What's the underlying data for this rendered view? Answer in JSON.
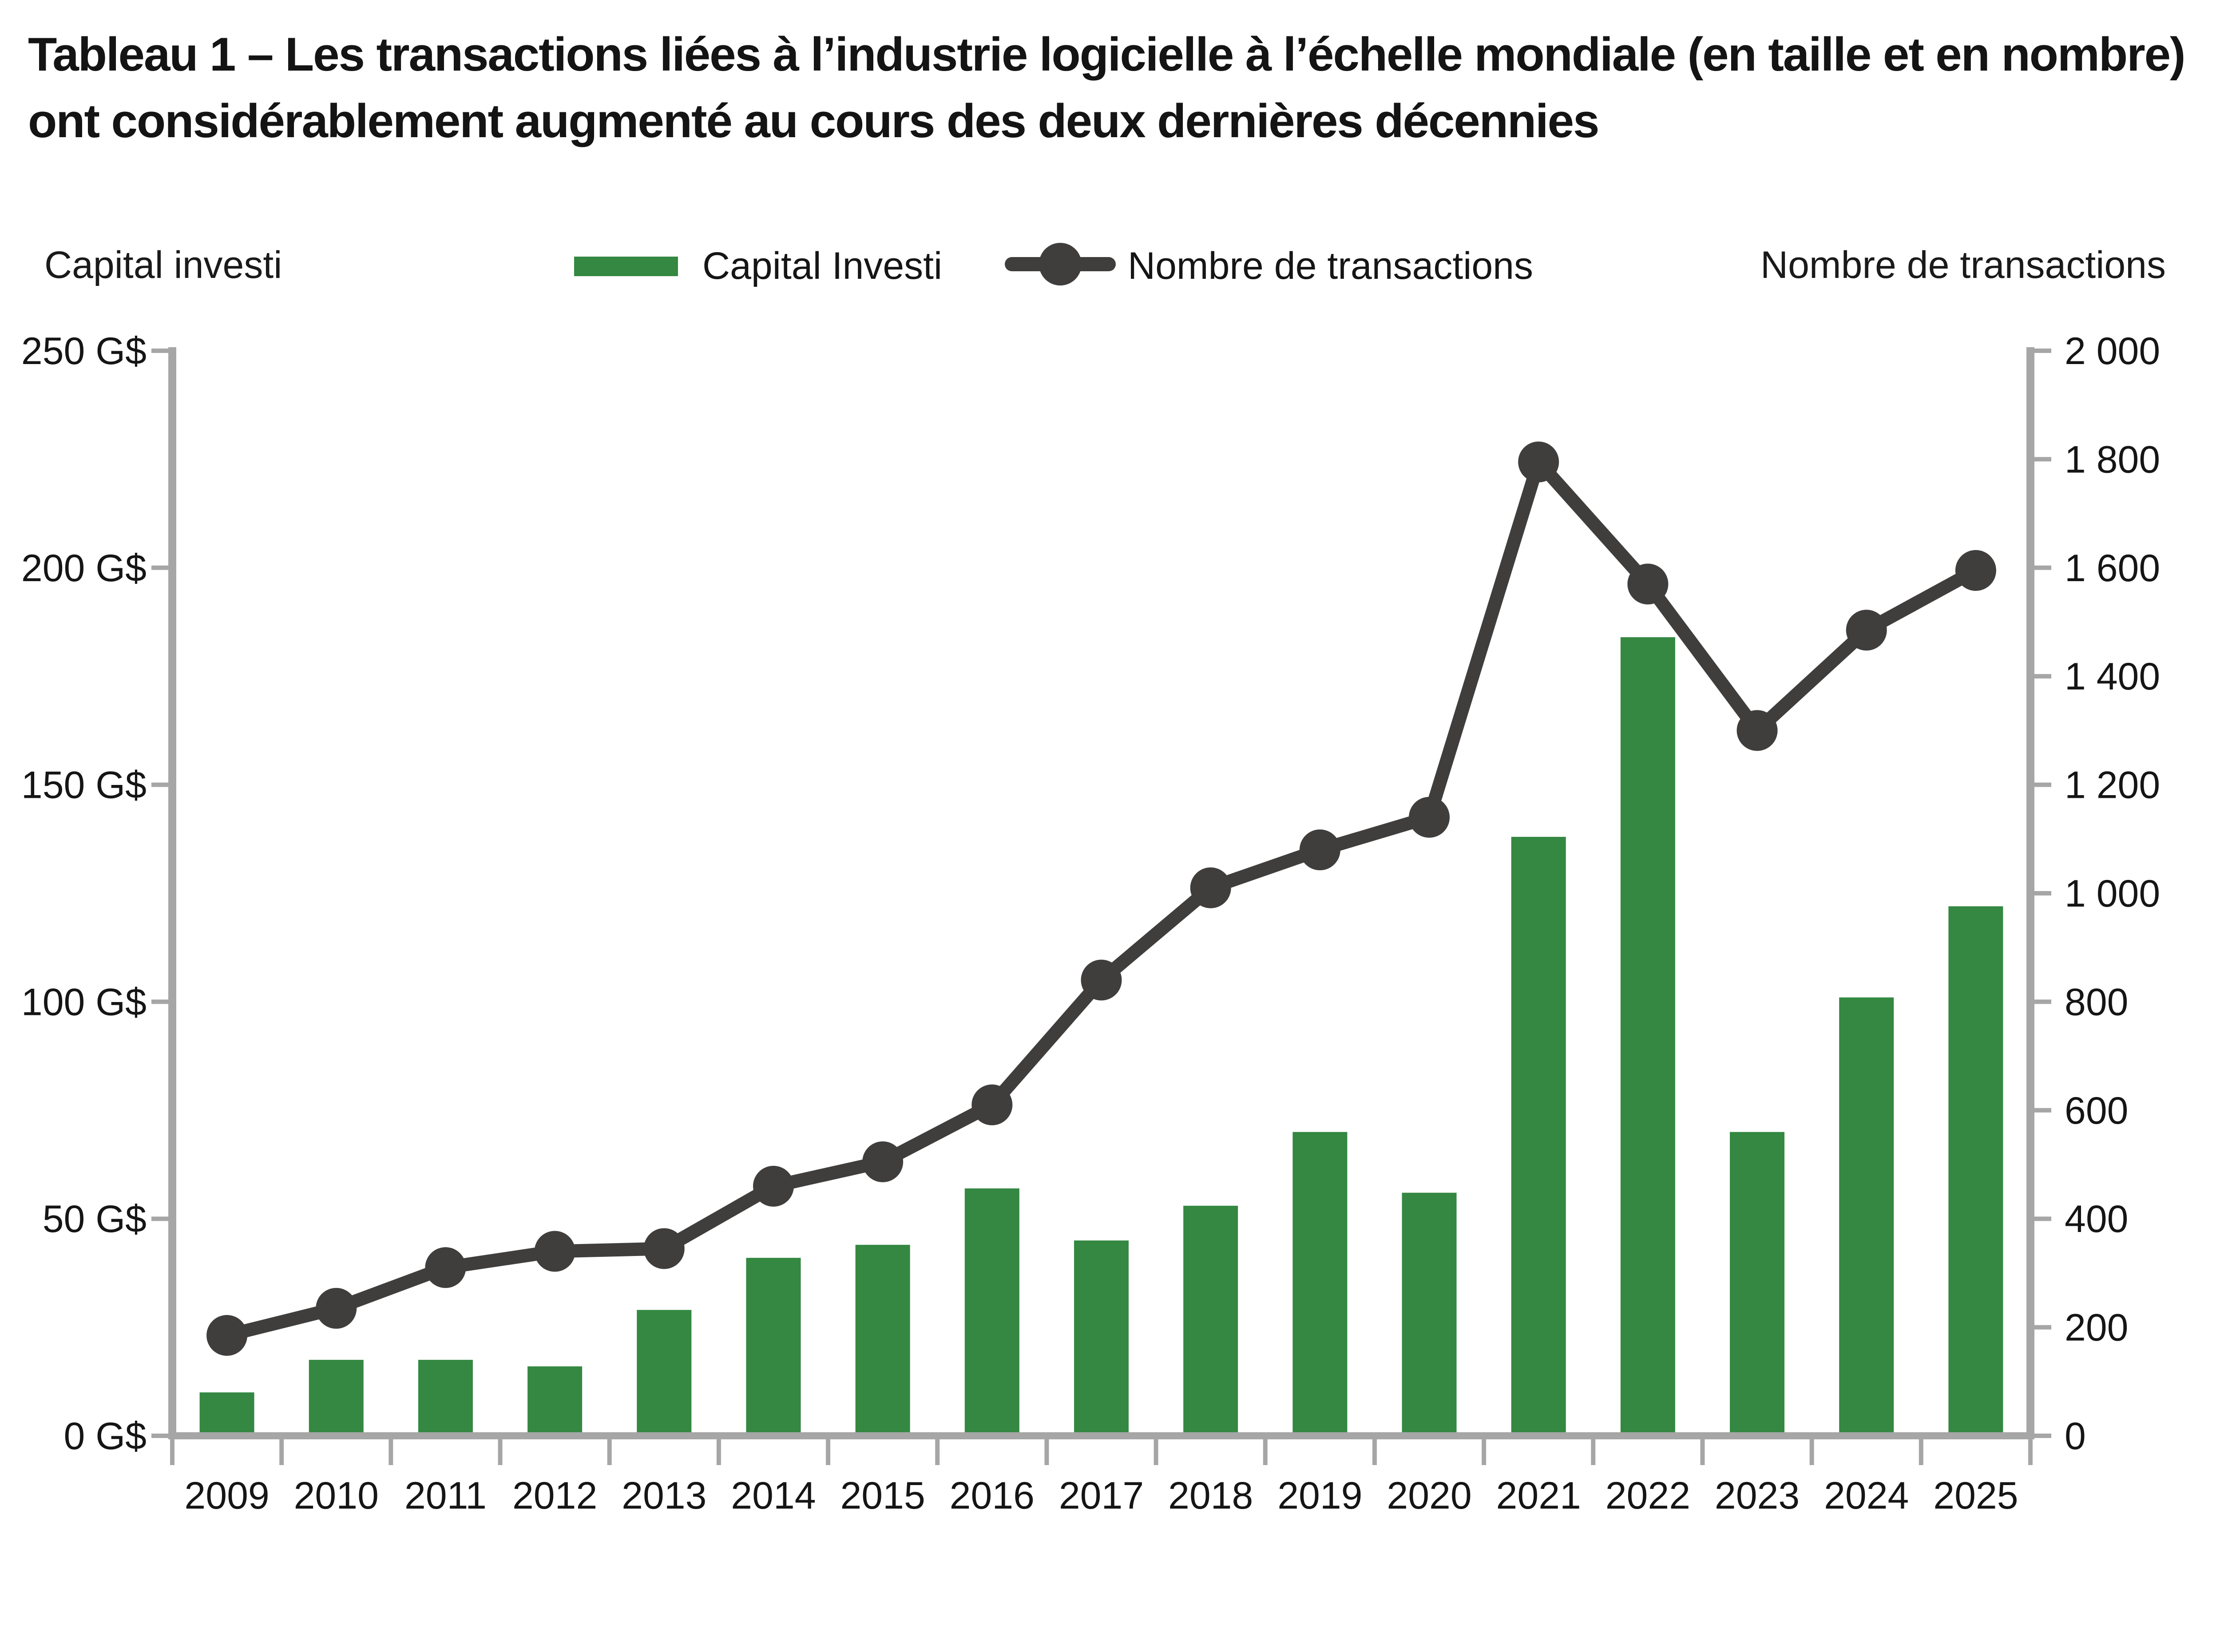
{
  "title": "Tableau 1 – Les transactions liées à l’industrie logicielle à l’échelle mondiale (en taille et en nombre) ont considérablement augmenté au cours des deux dernières décennies",
  "axis_headers": {
    "left": "Capital investi",
    "right": "Nombre de transactions"
  },
  "legend": {
    "bar_label": "Capital Investi",
    "line_label": "Nombre de transactions"
  },
  "colors": {
    "bar": "#348842",
    "line": "#403E3D",
    "axis": "#A6A6A6",
    "text": "#151515"
  },
  "chart_data": {
    "type": "bar+line combo",
    "categories": [
      "2009",
      "2010",
      "2011",
      "2012",
      "2013",
      "2014",
      "2015",
      "2016",
      "2017",
      "2018",
      "2019",
      "2020",
      "2021",
      "2022",
      "2023",
      "2024",
      "2025"
    ],
    "series": [
      {
        "name": "Capital Investi",
        "type": "bar",
        "axis": "left",
        "unit": "G$",
        "values": [
          10,
          17.5,
          17.5,
          16,
          29,
          41,
          44,
          57,
          45,
          53,
          70,
          56,
          138,
          184,
          70,
          101,
          122
        ]
      },
      {
        "name": "Nombre de transactions",
        "type": "line",
        "axis": "right",
        "unit": "transactions",
        "values": [
          185,
          235,
          310,
          340,
          345,
          460,
          505,
          610,
          840,
          1010,
          1080,
          1140,
          1795,
          1570,
          1300,
          1485,
          1595
        ]
      }
    ],
    "left_axis": {
      "min": 0,
      "max": 250,
      "tick_labels": [
        "0 G$",
        "50 G$",
        "100 G$",
        "150 G$",
        "200 G$",
        "250 G$"
      ]
    },
    "right_axis": {
      "min": 0,
      "max": 2000,
      "tick_labels": [
        "0",
        "200",
        "400",
        "600",
        "800",
        "1 000",
        "1 200",
        "1 400",
        "1 600",
        "1 800",
        "2 000"
      ]
    },
    "grid": false,
    "legend_position": "top-center"
  }
}
